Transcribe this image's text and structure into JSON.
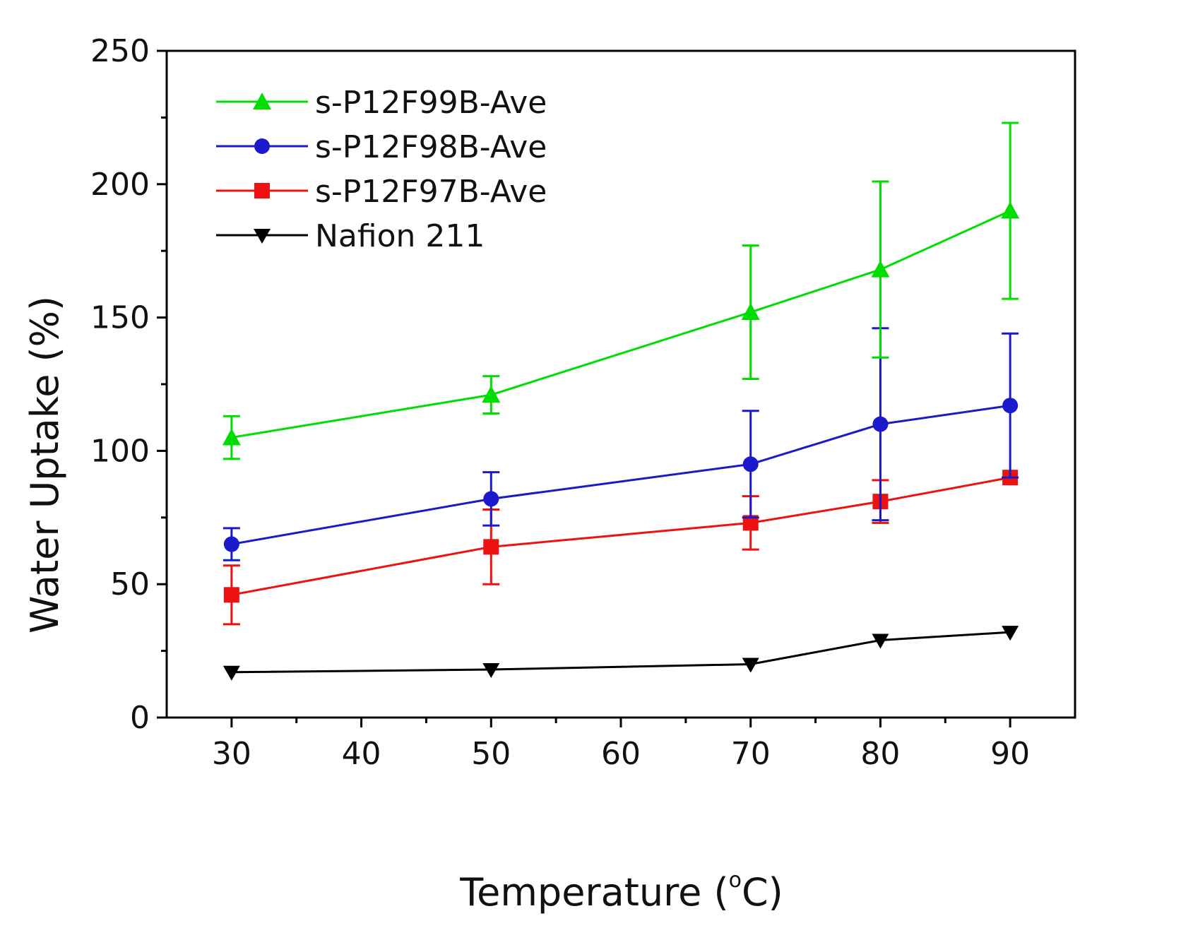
{
  "chart_data": {
    "type": "line",
    "title": "",
    "xlabel": "Temperature (°C)",
    "xlabel_main": "Temperature (",
    "xlabel_degree": "o",
    "xlabel_unit": "C)",
    "ylabel": "Water Uptake (%)",
    "xlim": [
      25,
      95
    ],
    "ylim": [
      0,
      250
    ],
    "xticks": [
      30,
      40,
      50,
      60,
      70,
      80,
      90
    ],
    "yticks": [
      0,
      50,
      100,
      150,
      200,
      250
    ],
    "x": [
      30,
      50,
      70,
      80,
      90
    ],
    "legend_position": "top-left",
    "series": [
      {
        "name": "s-P12F99B-Ave",
        "color": "#00dd00",
        "marker": "triangle-up",
        "values": [
          105,
          121,
          152,
          168,
          190
        ],
        "error": [
          8,
          7,
          25,
          33,
          33
        ]
      },
      {
        "name": "s-P12F98B-Ave",
        "color": "#1a1acc",
        "marker": "circle",
        "values": [
          65,
          82,
          95,
          110,
          117
        ],
        "error": [
          6,
          10,
          20,
          36,
          27
        ]
      },
      {
        "name": "s-P12F97B-Ave",
        "color": "#ee1111",
        "marker": "square",
        "values": [
          46,
          64,
          73,
          81,
          90
        ],
        "error": [
          11,
          14,
          10,
          8,
          0
        ]
      },
      {
        "name": "Nafion 211",
        "color": "#000000",
        "marker": "triangle-down",
        "values": [
          17,
          18,
          20,
          29,
          32
        ],
        "error": [
          0,
          0,
          0,
          0,
          0
        ]
      }
    ]
  }
}
